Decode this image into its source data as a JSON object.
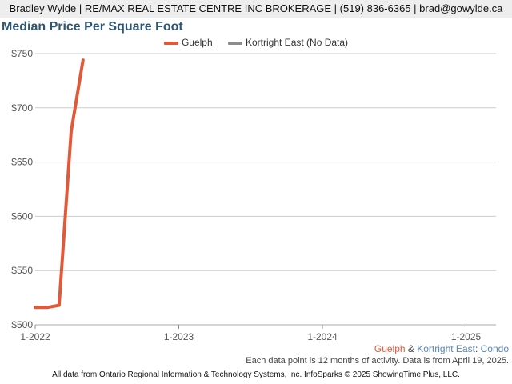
{
  "header": {
    "contact_line": "Bradley Wylde | RE/MAX REAL ESTATE CENTRE INC BROKERAGE | (519) 836-6365 | brad@gowylde.ca"
  },
  "colors": {
    "guelph": "#e05a3a",
    "kortright": "#8c8c8c",
    "title": "#2f5673",
    "grid": "#cccccc",
    "subject": "#5b86b5"
  },
  "area_label": {
    "guelph": "Guelph",
    "amp": " & ",
    "area": "Kortright East",
    "sep": ": ",
    "type": "Condo"
  },
  "notes": {
    "data_note": "Each data point is 12 months of activity. Data is from April 19, 2025.",
    "footer": "All data from Ontario Regional Information & Technology Systems, Inc. InfoSparks © 2025 ShowingTime Plus, LLC."
  },
  "chart_data": {
    "type": "line",
    "title": "Median Price Per Square Foot",
    "xlabel": "",
    "ylabel": "",
    "ylim": [
      500,
      750
    ],
    "yticks": [
      500,
      550,
      600,
      650,
      700,
      750
    ],
    "ytick_labels": [
      "$500",
      "$550",
      "$600",
      "$650",
      "$700",
      "$750"
    ],
    "xlim": [
      "2022-01",
      "2025-04"
    ],
    "xticks": [
      "2022-01",
      "2023-01",
      "2024-01",
      "2025-01"
    ],
    "xtick_labels": [
      "1-2022",
      "1-2023",
      "1-2024",
      "1-2025"
    ],
    "legend_position": "top-center",
    "grid": true,
    "series": [
      {
        "name": "Guelph",
        "color": "#e05a3a",
        "x": [
          "2022-01",
          "2022-02",
          "2022-03",
          "2022-04",
          "2022-05"
        ],
        "y": [
          516,
          516,
          518,
          678,
          744
        ]
      },
      {
        "name": "Kortright East (No Data)",
        "color": "#8c8c8c",
        "x": [],
        "y": []
      }
    ]
  }
}
